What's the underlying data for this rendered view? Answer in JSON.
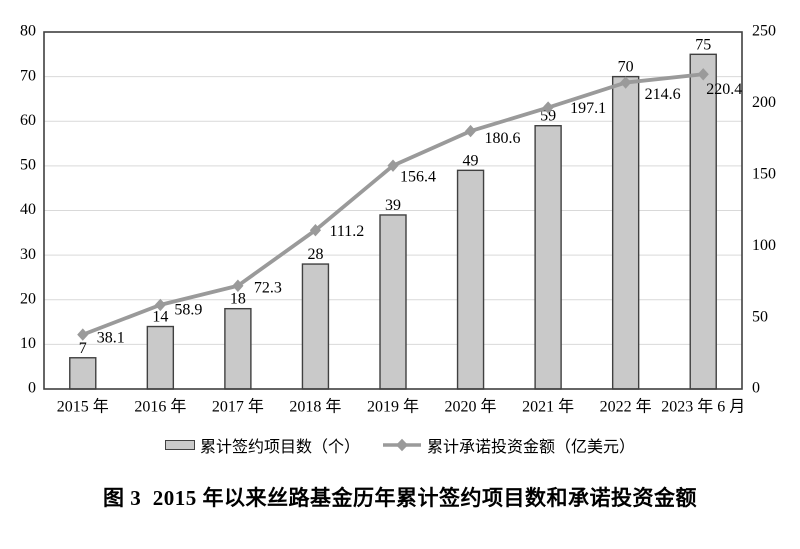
{
  "figure": {
    "caption": "图 3  2015 年以来丝路基金历年累计签约项目数和承诺投资金额"
  },
  "chart_data": {
    "type": "combo-bar-line",
    "title": "",
    "categories": [
      "2015 年",
      "2016 年",
      "2017 年",
      "2018 年",
      "2019 年",
      "2020 年",
      "2021 年",
      "2022 年",
      "2023 年 6 月"
    ],
    "series": [
      {
        "name": "累计签约项目数（个）",
        "type": "bar",
        "axis": "left",
        "values": [
          7,
          14,
          18,
          28,
          39,
          49,
          59,
          70,
          75
        ]
      },
      {
        "name": "累计承诺投资金额（亿美元）",
        "type": "line",
        "axis": "right",
        "values": [
          38.1,
          58.9,
          72.3,
          111.2,
          156.4,
          180.6,
          197.1,
          214.6,
          220.4
        ]
      }
    ],
    "left_axis": {
      "min": 0,
      "max": 80,
      "ticks": [
        0,
        10,
        20,
        30,
        40,
        50,
        60,
        70,
        80
      ]
    },
    "right_axis": {
      "min": 0,
      "max": 250,
      "ticks": [
        0,
        50,
        100,
        150,
        200,
        250
      ]
    },
    "grid": "horizontal",
    "legend_position": "bottom",
    "data_labels": true,
    "colors": {
      "bar_fill": "#c9c9c9",
      "bar_stroke": "#404040",
      "line": "#9a9a9a",
      "grid": "#d9d9d9",
      "border": "#404040",
      "text": "#000000"
    }
  },
  "legend": {
    "items": [
      {
        "label": "累计签约项目数（个）",
        "swatch": "bar"
      },
      {
        "label": "累计承诺投资金额（亿美元）",
        "swatch": "line-diamond"
      }
    ]
  }
}
